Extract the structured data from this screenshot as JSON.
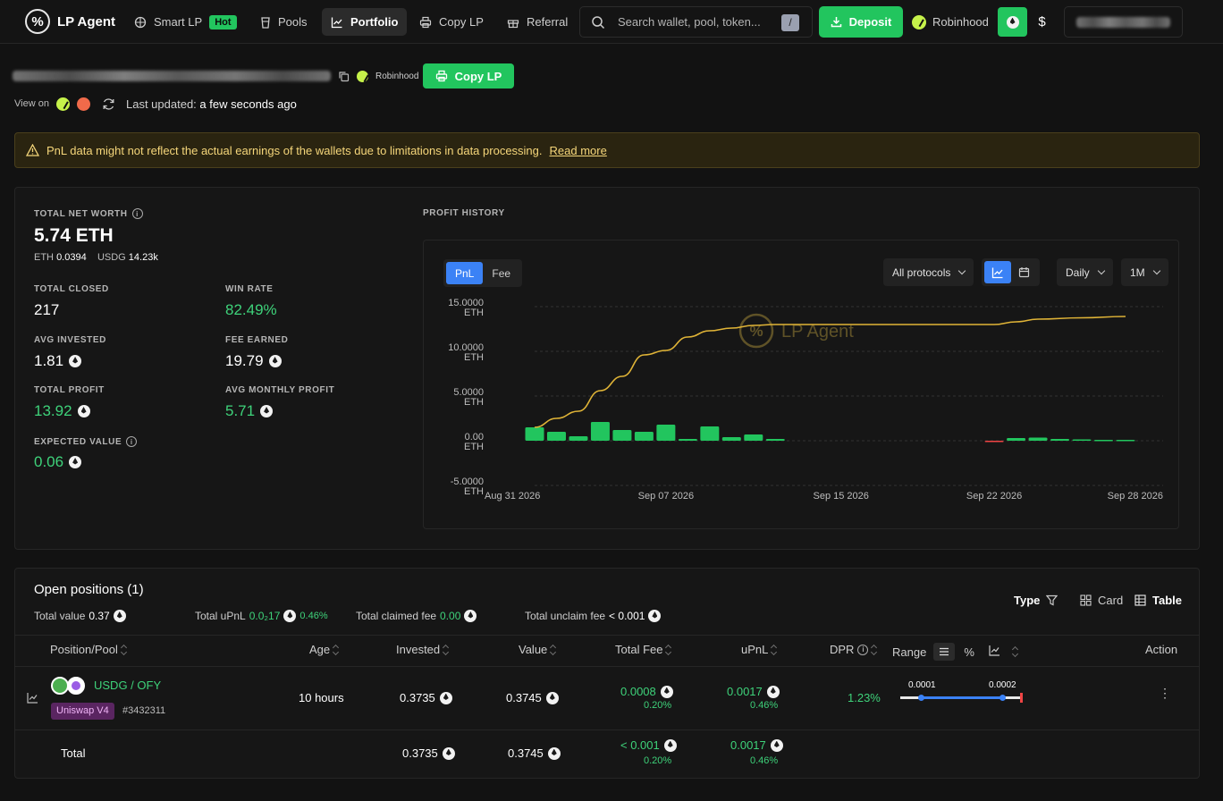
{
  "nav": {
    "brand": "LP Agent",
    "items": [
      {
        "label": "Smart LP",
        "badge": "Hot"
      },
      {
        "label": "Pools"
      },
      {
        "label": "Portfolio"
      },
      {
        "label": "Copy LP"
      },
      {
        "label": "Referral"
      }
    ],
    "search_placeholder": "Search wallet, pool, token...",
    "search_shortcut": "/",
    "deposit_label": "Deposit",
    "chain_label": "Robinhood",
    "currency_usd": "$"
  },
  "header": {
    "chain_label": "Robinhood",
    "copy_lp_label": "Copy LP",
    "view_on_label": "View on",
    "last_updated_label": "Last updated:",
    "last_updated_value": "a few seconds ago"
  },
  "warning": {
    "text": "PnL data might not reflect the actual earnings of the wallets due to limitations in data processing.",
    "link": "Read more"
  },
  "stats": {
    "net_worth_label": "TOTAL NET WORTH",
    "net_worth_value": "5.74 ETH",
    "eth_label": "ETH",
    "eth_value": "0.0394",
    "usdg_label": "USDG",
    "usdg_value": "14.23k",
    "total_closed_label": "TOTAL CLOSED",
    "total_closed_value": "217",
    "win_rate_label": "WIN RATE",
    "win_rate_value": "82.49%",
    "avg_invested_label": "AVG INVESTED",
    "avg_invested_value": "1.81",
    "fee_earned_label": "FEE EARNED",
    "fee_earned_value": "19.79",
    "total_profit_label": "TOTAL PROFIT",
    "total_profit_value": "13.92",
    "avg_monthly_label": "AVG MONTHLY PROFIT",
    "avg_monthly_value": "5.71",
    "expected_value_label": "EXPECTED VALUE",
    "expected_value_value": "0.06"
  },
  "profit_history": {
    "title": "PROFIT HISTORY",
    "tabs": [
      "PnL",
      "Fee"
    ],
    "protocol_filter": "All protocols",
    "interval": "Daily",
    "range": "1M",
    "watermark": "LP Agent"
  },
  "chart_data": {
    "type": "bar",
    "ylim": [
      -5,
      15
    ],
    "yticks": [
      "15.0000\nETH",
      "10.0000\nETH",
      "5.0000\nETH",
      "0.00\nETH",
      "-5.0000\nETH"
    ],
    "ytick_values": [
      15,
      10,
      5,
      0,
      -5
    ],
    "xticks": [
      "Aug 31 2026",
      "Sep 07 2026",
      "Sep 15 2026",
      "Sep 22 2026",
      "Sep 28 2026"
    ],
    "xtick_days": [
      0,
      7,
      15,
      22,
      28
    ],
    "bars": [
      {
        "day": 1,
        "value": 1.5
      },
      {
        "day": 2,
        "value": 1.0
      },
      {
        "day": 3,
        "value": 0.5
      },
      {
        "day": 4,
        "value": 2.1
      },
      {
        "day": 5,
        "value": 1.2
      },
      {
        "day": 6,
        "value": 1.0
      },
      {
        "day": 7,
        "value": 1.8
      },
      {
        "day": 8,
        "value": 0.2
      },
      {
        "day": 9,
        "value": 1.6
      },
      {
        "day": 10,
        "value": 0.4
      },
      {
        "day": 11,
        "value": 0.7
      },
      {
        "day": 12,
        "value": 0.2
      },
      {
        "day": 22,
        "value": -0.1
      },
      {
        "day": 23,
        "value": 0.3
      },
      {
        "day": 24,
        "value": 0.35
      },
      {
        "day": 25,
        "value": 0.2
      },
      {
        "day": 26,
        "value": 0.15
      },
      {
        "day": 27,
        "value": 0.1
      },
      {
        "day": 28,
        "value": 0.1
      }
    ],
    "cumulative": [
      {
        "day": 1,
        "value": 1.5
      },
      {
        "day": 2,
        "value": 2.5
      },
      {
        "day": 3,
        "value": 3.3
      },
      {
        "day": 4,
        "value": 5.6
      },
      {
        "day": 5,
        "value": 7.2
      },
      {
        "day": 6,
        "value": 9.6
      },
      {
        "day": 7,
        "value": 10.1
      },
      {
        "day": 8,
        "value": 11.6
      },
      {
        "day": 9,
        "value": 12.3
      },
      {
        "day": 10,
        "value": 12.6
      },
      {
        "day": 11,
        "value": 12.9
      },
      {
        "day": 12,
        "value": 13.0
      },
      {
        "day": 22,
        "value": 13.0
      },
      {
        "day": 23,
        "value": 13.3
      },
      {
        "day": 24,
        "value": 13.6
      },
      {
        "day": 26,
        "value": 13.75
      },
      {
        "day": 28,
        "value": 13.9
      }
    ]
  },
  "positions": {
    "title": "Open positions (1)",
    "total_value_label": "Total value",
    "total_value": "0.37",
    "total_upnl_label": "Total uPnL",
    "total_upnl": "0.0₂17",
    "total_upnl_pct": "0.46%",
    "claimed_fee_label": "Total claimed fee",
    "claimed_fee": "0.00",
    "unclaim_fee_label": "Total unclaim fee",
    "unclaim_fee": "< 0.001",
    "type_label": "Type",
    "card_label": "Card",
    "table_label": "Table",
    "columns": [
      "Position/Pool",
      "Age",
      "Invested",
      "Value",
      "Total Fee",
      "uPnL",
      "DPR",
      "Range",
      "Action"
    ],
    "range_pct": "%",
    "row": {
      "pool": "USDG / OFY",
      "protocol": "Uniswap V4",
      "id": "#3432311",
      "age": "10 hours",
      "invested": "0.3735",
      "value": "0.3745",
      "fee": "0.0008",
      "fee_pct": "0.20%",
      "upnl": "0.0017",
      "upnl_pct": "0.46%",
      "dpr": "1.23%",
      "range_low": "0.0001",
      "range_high": "0.0002"
    },
    "total": {
      "label": "Total",
      "invested": "0.3735",
      "value": "0.3745",
      "fee": "< 0.001",
      "fee_pct": "0.20%",
      "upnl": "0.0017",
      "upnl_pct": "0.46%"
    }
  }
}
